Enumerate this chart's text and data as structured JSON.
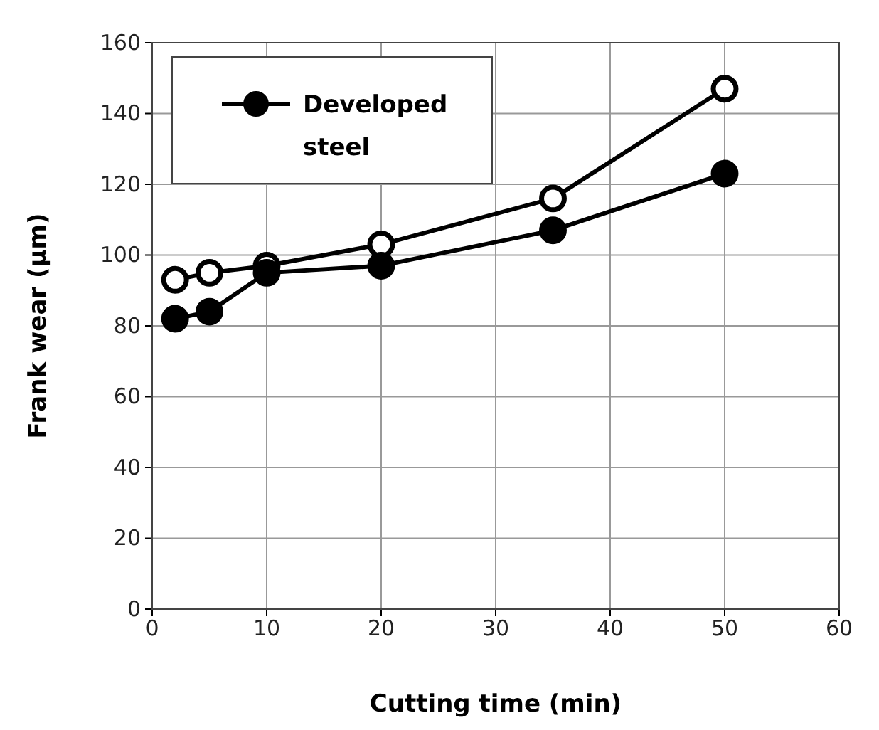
{
  "chart_data": {
    "type": "line",
    "xlabel": "Cutting time (min)",
    "ylabel": "Frank wear (μm)",
    "x": [
      2,
      5,
      10,
      20,
      35,
      50
    ],
    "series": [
      {
        "name": "Developed steel",
        "color": "#000000",
        "values": [
          82,
          84,
          95,
          97,
          107,
          123
        ]
      },
      {
        "color": "#ffffff",
        "values": [
          93,
          95,
          97,
          103,
          116,
          147
        ]
      }
    ],
    "xlim": [
      0,
      60
    ],
    "xticks": [
      0,
      10,
      20,
      30,
      40,
      50,
      60
    ],
    "ylim": [
      0,
      160
    ],
    "yticks": [
      0,
      20,
      40,
      60,
      80,
      100,
      120,
      140,
      160
    ],
    "grid": true,
    "legend": "top left",
    "marker": "circle",
    "line_style": "solid"
  }
}
